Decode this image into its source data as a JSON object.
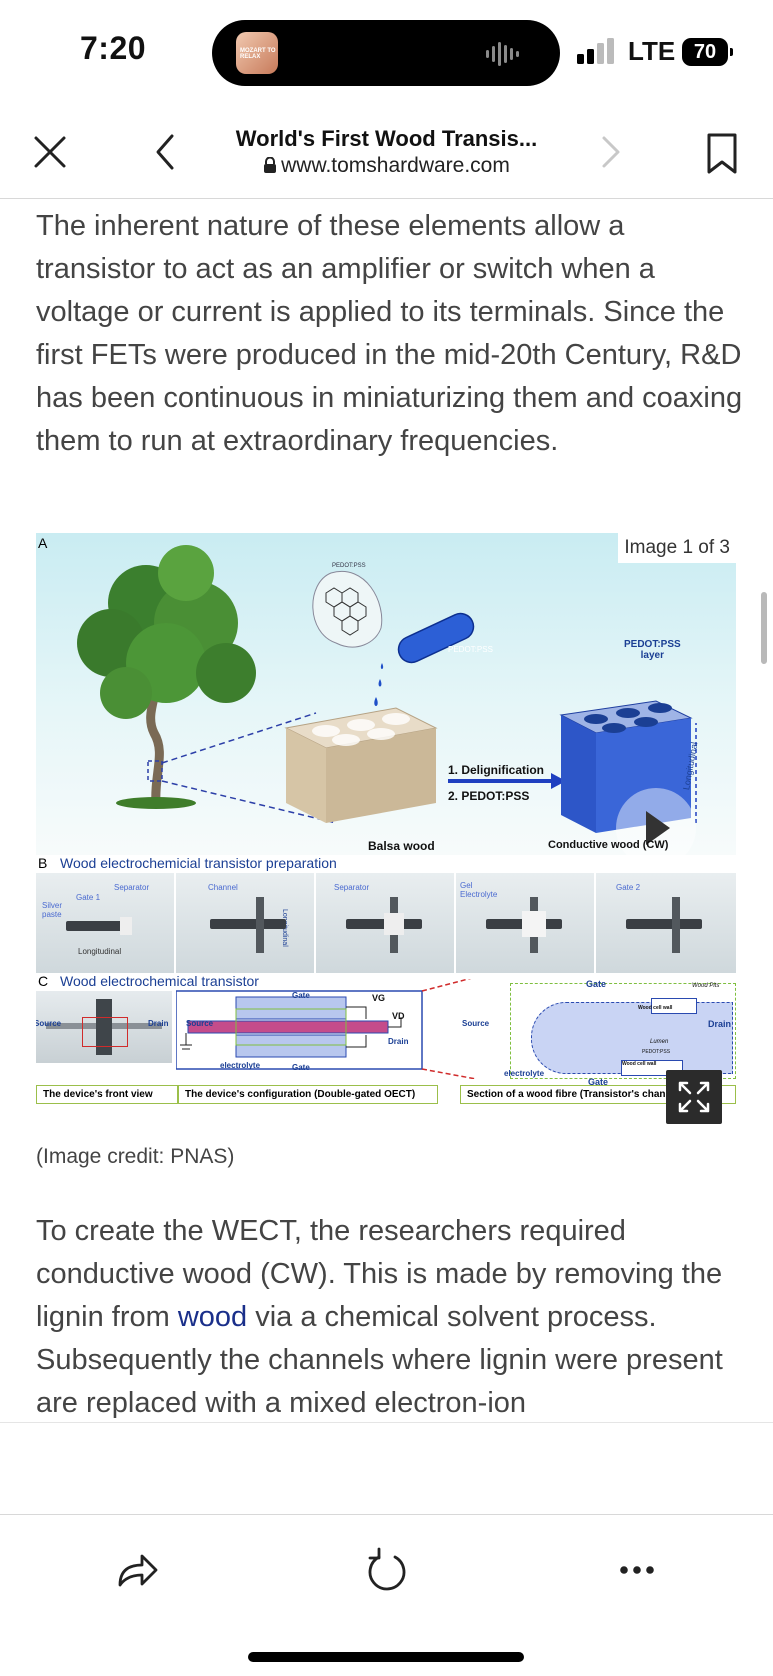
{
  "status_bar": {
    "time": "7:20",
    "island_thumb_text": "MOZART TO RELAX",
    "network": "LTE",
    "battery": "70"
  },
  "nav": {
    "title": "World's First Wood Transis...",
    "url": "www.tomshardware.com",
    "icons": [
      "close-icon",
      "chevron-left-icon",
      "lock-icon",
      "chevron-right-icon",
      "bookmark-icon"
    ]
  },
  "article": {
    "para1": "The inherent nature of these elements allow a transistor to act as an amplifier or switch when a voltage or current is applied to its terminals. Since the first FETs were produced in the mid-20th Century, R&D has been continuous in miniaturizing them and coaxing them to run at extraordinary frequencies.",
    "para2_before": "To create the WECT, the researchers required conductive wood (CW). This is made by removing the lignin from ",
    "para2_link": "wood",
    "para2_after": " via a chemical solvent process. Subsequently the channels where lignin were present are replaced with a mixed electron-ion",
    "credit": "(Image credit: PNAS)"
  },
  "figure": {
    "counter": "Image 1 of 3",
    "panelA": {
      "label": "A",
      "pedot_bubble": "PEDOT:PSS",
      "vial": "PEDOT:PSS",
      "step1": "1. Delignification",
      "step2": "2. PEDOT:PSS",
      "balsa": "Balsa wood",
      "conductive": "Conductive wood (CW)",
      "layer": "PEDOT:PSS\nlayer",
      "longitudinal": "Longitudinal"
    },
    "panelB": {
      "label": "B",
      "title": "Wood electrochemicial transistor preparation",
      "cells": [
        {
          "labels": [
            "Silver paste",
            "Gate 1",
            "Separator",
            "Longitudinal"
          ]
        },
        {
          "labels": [
            "Channel",
            "Longitudinal"
          ]
        },
        {
          "labels": [
            "Separator"
          ]
        },
        {
          "labels": [
            "Gel Electrolyte"
          ]
        },
        {
          "labels": [
            "Gate 2"
          ]
        }
      ]
    },
    "panelC": {
      "label": "C",
      "title": "Wood electrochemical transistor",
      "source": "Source",
      "drain": "Drain",
      "gate": "Gate",
      "vg": "VG",
      "vd": "VD",
      "electrolyte": "electrolyte",
      "wood_pits": "Wood Pits",
      "cell_wall": "Wood cell wall",
      "lumen": "Lumen",
      "pedot": "PEDOT:PSS",
      "captions": [
        "The device's front view",
        "The device's configuration (Double-gated OECT)",
        "Section of a wood fibre (Transistor's channel a"
      ]
    }
  },
  "toolbar": {
    "icons": [
      "share-icon",
      "reload-icon",
      "more-icon"
    ]
  },
  "colors": {
    "link": "#1a2f8a",
    "figure_heading": "#1b3f94",
    "caption_border": "#9bbf4a"
  }
}
